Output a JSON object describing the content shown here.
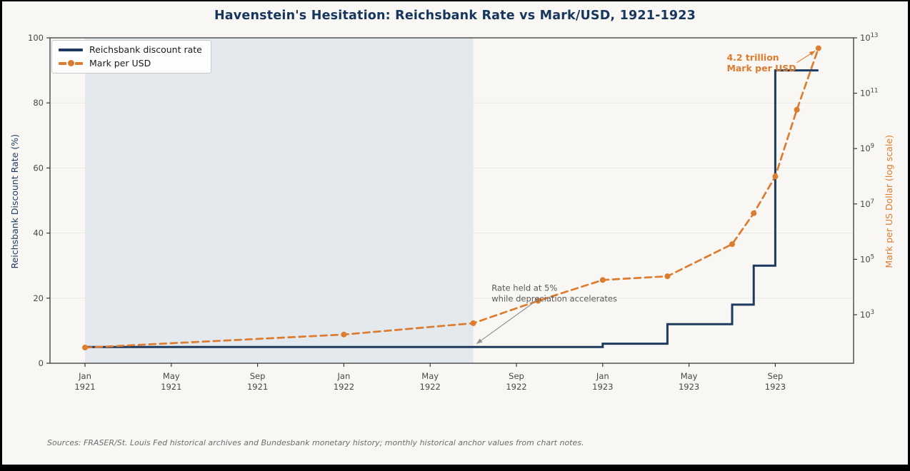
{
  "title": "Havenstein's Hesitation: Reichsbank Rate vs Mark/USD, 1921-1923",
  "legend": {
    "items": [
      {
        "label": "Reichsbank discount rate",
        "color": "#1e3a5f",
        "style": "solid"
      },
      {
        "label": "Mark per USD",
        "color": "#dd7c2e",
        "style": "dashed-with-marker"
      }
    ]
  },
  "axes": {
    "left": {
      "label": "Reichsbank Discount Rate (%)",
      "ticks": [
        0,
        20,
        40,
        60,
        80,
        100
      ],
      "range": [
        0,
        100
      ],
      "color": "#1e3a5f"
    },
    "right": {
      "label": "Mark per US Dollar (log scale)",
      "tick_exponents": [
        3,
        5,
        7,
        9,
        11,
        13
      ],
      "range_log10": [
        1.25,
        13
      ],
      "color": "#dd7c2e"
    },
    "x": {
      "ticks": [
        {
          "month": "Jan",
          "year": "1921",
          "m": 0
        },
        {
          "month": "May",
          "year": "1921",
          "m": 4
        },
        {
          "month": "Sep",
          "year": "1921",
          "m": 8
        },
        {
          "month": "Jan",
          "year": "1922",
          "m": 12
        },
        {
          "month": "May",
          "year": "1922",
          "m": 16
        },
        {
          "month": "Sep",
          "year": "1922",
          "m": 20
        },
        {
          "month": "Jan",
          "year": "1923",
          "m": 24
        },
        {
          "month": "May",
          "year": "1923",
          "m": 28
        },
        {
          "month": "Sep",
          "year": "1923",
          "m": 32
        }
      ]
    }
  },
  "chart_data": {
    "type": "line",
    "x_unit": "months since Jan 1921",
    "anchor_months": [
      0,
      12,
      18,
      21,
      24,
      27,
      30,
      31,
      32,
      33,
      34
    ],
    "anchor_dates": [
      "Jan 1921",
      "Jan 1922",
      "Jul 1922",
      "Oct 1922",
      "Jan 1923",
      "Apr 1923",
      "Jul 1923",
      "Aug 1923",
      "Sep 1923",
      "Oct 1923",
      "Nov 1923"
    ],
    "series": [
      {
        "name": "Reichsbank discount rate",
        "axis": "left",
        "style": "step-post",
        "color": "#1e3a5f",
        "values": [
          5,
          5,
          5,
          5,
          6,
          12,
          18,
          30,
          90,
          90,
          90
        ]
      },
      {
        "name": "Mark per USD",
        "axis": "right-log",
        "style": "dashed-with-markers",
        "color": "#dd7c2e",
        "values": [
          65,
          192,
          493,
          3180,
          17972,
          24475,
          353412,
          4620455,
          98860000,
          25260000000,
          4200000000000
        ]
      }
    ],
    "shaded_band": {
      "from_month": 0,
      "to_month": 18,
      "color": "#e3e9ec"
    },
    "grid": {
      "horizontal_left_ticks": [
        20,
        40,
        60,
        80
      ],
      "color": "#eae9e5"
    },
    "legend_position": "upper left"
  },
  "annotations": [
    {
      "lines": [
        "Rate held at 5%",
        "while depreciation accelerates"
      ],
      "color": "#5a5a5a",
      "bold": false,
      "text_month": 18.85,
      "text_rate": 22.3,
      "arrow": {
        "from_month": 21.0,
        "from_rate": 19.6,
        "to_month": 18.15,
        "to_rate": 6.0,
        "color": "#8f8f8f"
      }
    },
    {
      "lines": [
        "4.2 trillion",
        "Mark per USD"
      ],
      "color": "#dd7c2e",
      "bold": true,
      "text_month": 29.75,
      "text_rate": 93.0,
      "arrow": {
        "from_month": 33.0,
        "from_rate": 92.4,
        "to_month": 33.85,
        "to_rate": 96.0,
        "color": "#dd7c2e"
      }
    }
  ],
  "source": "Sources: FRASER/St. Louis Fed historical archives and Bundesbank monetary history; monthly historical anchor values from chart notes."
}
